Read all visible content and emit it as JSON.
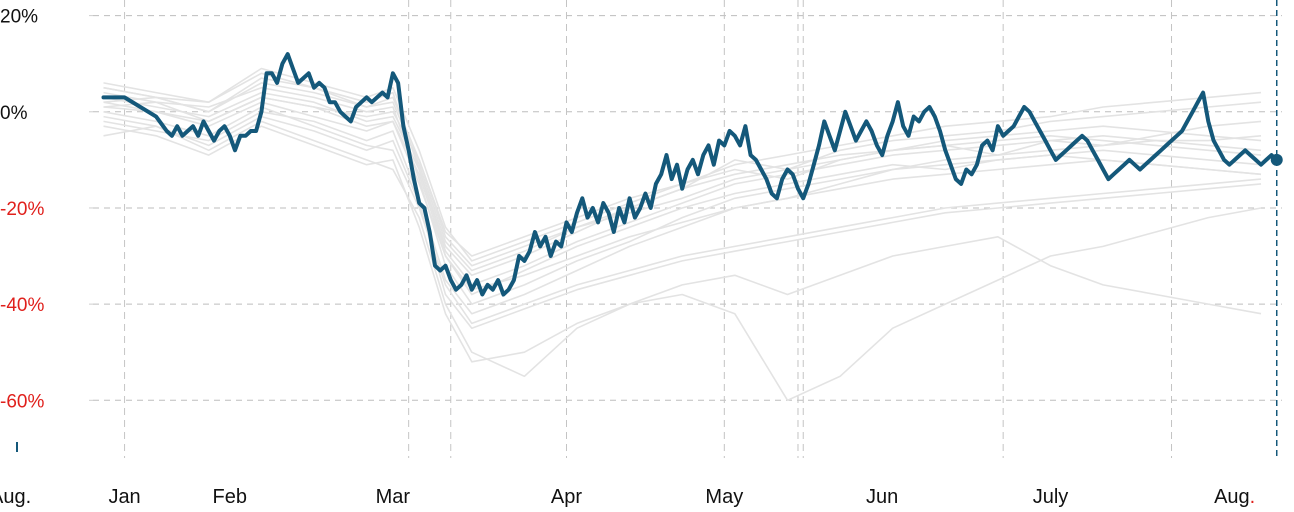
{
  "chart_data": {
    "type": "line",
    "title": "",
    "xlabel": "",
    "ylabel": "",
    "ylim": [
      -72,
      22
    ],
    "xlim": [
      -2,
      224
    ],
    "y_ticks": [
      {
        "value": 20,
        "label": "20%"
      },
      {
        "value": 0,
        "label": "0%"
      },
      {
        "value": -20,
        "label": "-20%"
      },
      {
        "value": -40,
        "label": "-40%"
      },
      {
        "value": -60,
        "label": "-60%"
      }
    ],
    "x_ticks": [
      {
        "value": 4,
        "label": "Jan"
      },
      {
        "value": 24,
        "label": "Feb"
      },
      {
        "value": 55,
        "label": "Mar"
      },
      {
        "value": 88,
        "label": "Apr"
      },
      {
        "value": 118,
        "label": "May"
      },
      {
        "value": 148,
        "label": "Jun"
      },
      {
        "value": 180,
        "label": "July"
      },
      {
        "value": 215,
        "label": "Aug."
      }
    ],
    "left_edge_label": "Aug.",
    "vertical_reference_lines": [
      4,
      58,
      66,
      88,
      118,
      132,
      133,
      171,
      203
    ],
    "gridlines": true,
    "colors": {
      "highlight": "#14587a",
      "background_series": "#e3e3e3",
      "negative_tick": "#e0201c",
      "positive_tick": "#111111",
      "gridline": "#bdbdbd"
    },
    "series": [
      {
        "highlight": true,
        "x": [
          0,
          4,
          10,
          12,
          13,
          14,
          15,
          16,
          17,
          18,
          19,
          20,
          21,
          22,
          23,
          24,
          25,
          26,
          27,
          28,
          29,
          30,
          31,
          32,
          33,
          34,
          35,
          36,
          37,
          38,
          39,
          40,
          41,
          42,
          43,
          44,
          45,
          46,
          47,
          48,
          49,
          50,
          51,
          52,
          53,
          54,
          55,
          56,
          57,
          58,
          59,
          60,
          61,
          62,
          63,
          64,
          65,
          66,
          67,
          68,
          69,
          70,
          71,
          72,
          73,
          74,
          75,
          76,
          77,
          78,
          79,
          80,
          81,
          82,
          83,
          84,
          85,
          86,
          87,
          88,
          89,
          90,
          91,
          92,
          93,
          94,
          95,
          96,
          97,
          98,
          99,
          100,
          101,
          102,
          103,
          104,
          105,
          106,
          107,
          108,
          109,
          110,
          111,
          112,
          113,
          114,
          115,
          116,
          117,
          118,
          119,
          120,
          121,
          122,
          123,
          124,
          125,
          126,
          127,
          128,
          129,
          130,
          131,
          132,
          133,
          134,
          135,
          136,
          137,
          138,
          139,
          140,
          141,
          142,
          143,
          144,
          145,
          146,
          147,
          148,
          149,
          150,
          151,
          152,
          153,
          154,
          155,
          156,
          157,
          158,
          159,
          160,
          161,
          162,
          163,
          164,
          165,
          166,
          167,
          168,
          169,
          170,
          171,
          172,
          173,
          174,
          175,
          176,
          177,
          178,
          179,
          180,
          181,
          182,
          183,
          184,
          185,
          186,
          187,
          188,
          189,
          190,
          191,
          192,
          193,
          194,
          195,
          196,
          197,
          198,
          199,
          200,
          201,
          202,
          203,
          204,
          205,
          206,
          207,
          208,
          209,
          210,
          211,
          212,
          213,
          214,
          215,
          216,
          217,
          218,
          219,
          220,
          221,
          222,
          223
        ],
        "y": [
          3,
          3,
          -1,
          -4,
          -5,
          -3,
          -5,
          -4,
          -3,
          -5,
          -2,
          -4,
          -6,
          -4,
          -3,
          -5,
          -8,
          -5,
          -5,
          -4,
          -4,
          0,
          8,
          8,
          6,
          10,
          12,
          9,
          6,
          7,
          8,
          5,
          6,
          5,
          2,
          2,
          0,
          -1,
          -2,
          1,
          2,
          3,
          2,
          3,
          4,
          3,
          8,
          6,
          -3,
          -8,
          -14,
          -19,
          -20,
          -25,
          -32,
          -33,
          -32,
          -35,
          -37,
          -36,
          -34,
          -37,
          -35,
          -38,
          -36,
          -37,
          -35,
          -38,
          -37,
          -35,
          -30,
          -31,
          -29,
          -25,
          -28,
          -26,
          -30,
          -27,
          -28,
          -23,
          -25,
          -21,
          -18,
          -22,
          -20,
          -23,
          -19,
          -21,
          -25,
          -20,
          -23,
          -18,
          -22,
          -20,
          -17,
          -20,
          -15,
          -13,
          -9,
          -14,
          -11,
          -16,
          -12,
          -10,
          -13,
          -9,
          -7,
          -11,
          -6,
          -7,
          -4,
          -5,
          -7,
          -3,
          -9,
          -10,
          -12,
          -14,
          -17,
          -18,
          -14,
          -12,
          -13,
          -16,
          -18,
          -15,
          -11,
          -7,
          -2,
          -5,
          -8,
          -4,
          0,
          -3,
          -6,
          -4,
          -2,
          -4,
          -7,
          -9,
          -5,
          -2,
          2,
          -3,
          -5,
          -1,
          -2,
          0,
          1,
          -1,
          -4,
          -8,
          -11,
          -14,
          -15,
          -12,
          -13,
          -11,
          -7,
          -6,
          -8,
          -3,
          -5,
          -4,
          -3,
          -1,
          1,
          0,
          -2,
          -4,
          -6,
          -8,
          -10,
          -9,
          -8,
          -7,
          -6,
          -5,
          -6,
          -8,
          -10,
          -12,
          -14,
          -13,
          -12,
          -11,
          -10,
          -11,
          -12,
          -11,
          -10,
          -9,
          -8,
          -7,
          -6,
          -5,
          -4,
          -2,
          0,
          2,
          4,
          -2,
          -6,
          -8,
          -10,
          -11,
          -10,
          -9,
          -8,
          -9,
          -10,
          -11,
          -10,
          -9,
          -10
        ]
      },
      {
        "highlight": false,
        "x": [
          0,
          10,
          20,
          30,
          40,
          50,
          55,
          60,
          65,
          70,
          80,
          90,
          100,
          110,
          120,
          130,
          140,
          150,
          160,
          170,
          180,
          190,
          200,
          210,
          220
        ],
        "y": [
          5,
          3,
          0,
          7,
          5,
          2,
          4,
          -12,
          -28,
          -34,
          -30,
          -25,
          -20,
          -16,
          -10,
          -12,
          -8,
          -6,
          -5,
          -4,
          -2,
          -1,
          0,
          1,
          2
        ]
      },
      {
        "highlight": false,
        "x": [
          0,
          10,
          20,
          30,
          40,
          50,
          55,
          60,
          65,
          70,
          80,
          90,
          100,
          110,
          120,
          130,
          140,
          150,
          160,
          170,
          180,
          190,
          200,
          210,
          220
        ],
        "y": [
          -2,
          -4,
          -6,
          0,
          -2,
          -6,
          -4,
          -18,
          -35,
          -42,
          -38,
          -33,
          -28,
          -24,
          -20,
          -18,
          -15,
          -12,
          -10,
          -9,
          -8,
          -7,
          -6,
          -6,
          -5
        ]
      },
      {
        "highlight": false,
        "x": [
          0,
          10,
          20,
          30,
          40,
          50,
          55,
          60,
          65,
          70,
          80,
          90,
          100,
          110,
          120,
          130,
          140,
          150,
          160,
          170,
          180,
          190,
          200,
          210,
          220
        ],
        "y": [
          2,
          0,
          -3,
          2,
          -1,
          -4,
          -2,
          -15,
          -30,
          -38,
          -33,
          -28,
          -24,
          -20,
          -17,
          -15,
          -13,
          -11,
          -12,
          -10,
          -9,
          -10,
          -11,
          -12,
          -13
        ]
      },
      {
        "highlight": false,
        "x": [
          0,
          10,
          20,
          30,
          40,
          50,
          55,
          60,
          65,
          70,
          80,
          90,
          100,
          110,
          120,
          130,
          140,
          150,
          160,
          170,
          180,
          190,
          200,
          210,
          220
        ],
        "y": [
          1,
          2,
          -2,
          3,
          1,
          -1,
          0,
          -10,
          -25,
          -30,
          -26,
          -22,
          -18,
          -15,
          -12,
          -14,
          -10,
          -8,
          -7,
          -9,
          -6,
          -7,
          -5,
          -3,
          -2
        ]
      },
      {
        "highlight": false,
        "x": [
          0,
          10,
          20,
          30,
          40,
          50,
          55,
          60,
          65,
          70,
          80,
          90,
          100,
          110,
          120,
          130,
          140,
          150,
          160,
          170,
          180,
          190,
          200,
          210,
          220
        ],
        "y": [
          -5,
          -3,
          -8,
          -2,
          -6,
          -10,
          -12,
          -22,
          -40,
          -50,
          -55,
          -45,
          -40,
          -38,
          -42,
          -60,
          -55,
          -45,
          -40,
          -35,
          -30,
          -28,
          -25,
          -22,
          -20
        ]
      },
      {
        "highlight": false,
        "x": [
          0,
          10,
          20,
          30,
          40,
          50,
          55,
          60,
          65,
          70,
          80,
          90,
          100,
          110,
          120,
          130,
          140,
          150,
          160,
          170,
          180,
          190,
          200,
          210,
          220
        ],
        "y": [
          4,
          2,
          1,
          5,
          3,
          0,
          1,
          -14,
          -32,
          -40,
          -36,
          -31,
          -27,
          -22,
          -18,
          -16,
          -14,
          -12,
          -11,
          -10,
          -9,
          -8,
          -9,
          -10,
          -11
        ]
      },
      {
        "highlight": false,
        "x": [
          0,
          10,
          20,
          30,
          40,
          50,
          55,
          60,
          65,
          70,
          80,
          90,
          100,
          110,
          120,
          130,
          140,
          150,
          160,
          170,
          180,
          190,
          200,
          210,
          220
        ],
        "y": [
          0,
          -2,
          -5,
          1,
          -3,
          -7,
          -8,
          -20,
          -36,
          -44,
          -40,
          -36,
          -33,
          -30,
          -28,
          -26,
          -24,
          -22,
          -20,
          -19,
          -18,
          -17,
          -16,
          -15,
          -14
        ]
      },
      {
        "highlight": false,
        "x": [
          0,
          10,
          20,
          30,
          40,
          50,
          55,
          60,
          65,
          70,
          80,
          90,
          100,
          110,
          120,
          130,
          140,
          150,
          160,
          170,
          180,
          190,
          200,
          210,
          220
        ],
        "y": [
          3,
          1,
          -1,
          4,
          2,
          -2,
          -1,
          -12,
          -29,
          -36,
          -32,
          -27,
          -23,
          -19,
          -15,
          -13,
          -11,
          -9,
          -8,
          -7,
          -6,
          -5,
          -6,
          -7,
          -8
        ]
      },
      {
        "highlight": false,
        "x": [
          0,
          10,
          20,
          30,
          40,
          50,
          55,
          60,
          65,
          70,
          80,
          90,
          100,
          110,
          120,
          130,
          140,
          150,
          160,
          170,
          180,
          190,
          200,
          210,
          220
        ],
        "y": [
          6,
          4,
          2,
          9,
          6,
          3,
          5,
          -8,
          -24,
          -31,
          -27,
          -23,
          -19,
          -15,
          -11,
          -9,
          -7,
          -5,
          -3,
          -2,
          -1,
          1,
          2,
          3,
          4
        ]
      },
      {
        "highlight": false,
        "x": [
          0,
          10,
          20,
          30,
          40,
          50,
          55,
          60,
          65,
          70,
          80,
          90,
          100,
          110,
          120,
          130,
          140,
          150,
          160,
          170,
          180,
          190,
          200,
          210,
          220
        ],
        "y": [
          -1,
          -3,
          -7,
          -1,
          -4,
          -8,
          -6,
          -19,
          -38,
          -45,
          -41,
          -37,
          -34,
          -31,
          -29,
          -27,
          -25,
          -23,
          -21,
          -20,
          -19,
          -18,
          -17,
          -16,
          -15
        ]
      },
      {
        "highlight": false,
        "x": [
          0,
          10,
          20,
          30,
          40,
          50,
          55,
          60,
          65,
          70,
          80,
          90,
          100,
          110,
          120,
          130,
          140,
          150,
          160,
          170,
          180,
          190,
          200,
          210,
          220
        ],
        "y": [
          2,
          3,
          0,
          6,
          4,
          1,
          2,
          -11,
          -27,
          -33,
          -29,
          -24,
          -20,
          -16,
          -13,
          -11,
          -9,
          -8,
          -7,
          -6,
          -5,
          -6,
          -7,
          -8,
          -9
        ]
      },
      {
        "highlight": false,
        "x": [
          0,
          10,
          20,
          30,
          40,
          50,
          55,
          60,
          65,
          70,
          80,
          90,
          100,
          110,
          120,
          130,
          140,
          150,
          160,
          170,
          180,
          190,
          200,
          210,
          220
        ],
        "y": [
          -3,
          -5,
          -9,
          -3,
          -7,
          -11,
          -10,
          -24,
          -42,
          -52,
          -50,
          -44,
          -40,
          -36,
          -34,
          -38,
          -34,
          -30,
          -28,
          -26,
          -32,
          -36,
          -38,
          -40,
          -42
        ]
      },
      {
        "highlight": false,
        "x": [
          0,
          10,
          20,
          30,
          40,
          50,
          55,
          60,
          65,
          70,
          80,
          90,
          100,
          110,
          120,
          130,
          140,
          150,
          160,
          170,
          180,
          190,
          200,
          210,
          220
        ],
        "y": [
          1,
          0,
          -2,
          3,
          1,
          -3,
          -2,
          -13,
          -30,
          -37,
          -34,
          -30,
          -26,
          -23,
          -20,
          -18,
          -16,
          -14,
          -13,
          -12,
          -11,
          -10,
          -11,
          -12,
          -13
        ]
      },
      {
        "highlight": false,
        "x": [
          0,
          10,
          20,
          30,
          40,
          50,
          55,
          60,
          65,
          70,
          80,
          90,
          100,
          110,
          120,
          130,
          140,
          150,
          160,
          170,
          180,
          190,
          200,
          210,
          220
        ],
        "y": [
          5,
          3,
          2,
          8,
          5,
          1,
          3,
          -10,
          -26,
          -32,
          -28,
          -24,
          -21,
          -18,
          -14,
          -12,
          -10,
          -8,
          -6,
          -5,
          -4,
          -3,
          -4,
          -5,
          -6
        ]
      }
    ]
  }
}
